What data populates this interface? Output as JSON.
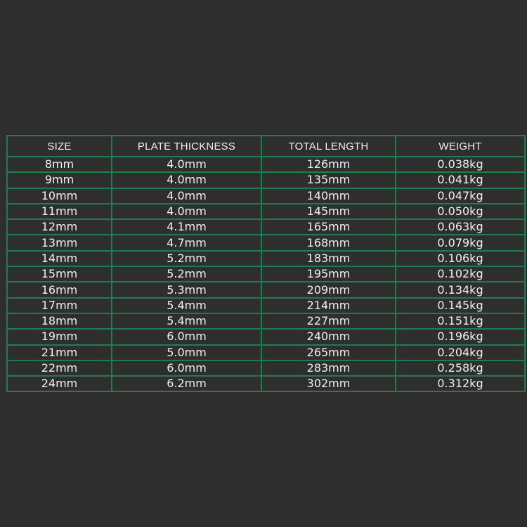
{
  "table": {
    "headers": [
      "SIZE",
      "PLATE THICKNESS",
      "TOTAL LENGTH",
      "WEIGHT"
    ],
    "rows": [
      [
        "8mm",
        "4.0mm",
        "126mm",
        "0.038kg"
      ],
      [
        "9mm",
        "4.0mm",
        "135mm",
        "0.041kg"
      ],
      [
        "10mm",
        "4.0mm",
        "140mm",
        "0.047kg"
      ],
      [
        "11mm",
        "4.0mm",
        "145mm",
        "0.050kg"
      ],
      [
        "12mm",
        "4.1mm",
        "165mm",
        "0.063kg"
      ],
      [
        "13mm",
        "4.7mm",
        "168mm",
        "0.079kg"
      ],
      [
        "14mm",
        "5.2mm",
        "183mm",
        "0.106kg"
      ],
      [
        "15mm",
        "5.2mm",
        "195mm",
        "0.102kg"
      ],
      [
        "16mm",
        "5.3mm",
        "209mm",
        "0.134kg"
      ],
      [
        "17mm",
        "5.4mm",
        "214mm",
        "0.145kg"
      ],
      [
        "18mm",
        "5.4mm",
        "227mm",
        "0.151kg"
      ],
      [
        "19mm",
        "6.0mm",
        "240mm",
        "0.196kg"
      ],
      [
        "21mm",
        "5.0mm",
        "265mm",
        "0.204kg"
      ],
      [
        "22mm",
        "6.0mm",
        "283mm",
        "0.258kg"
      ],
      [
        "24mm",
        "6.2mm",
        "302mm",
        "0.312kg"
      ]
    ]
  },
  "colors": {
    "background": "#2e2e2e",
    "grid": "#1f7c4c",
    "text": "#f0f0f0"
  }
}
